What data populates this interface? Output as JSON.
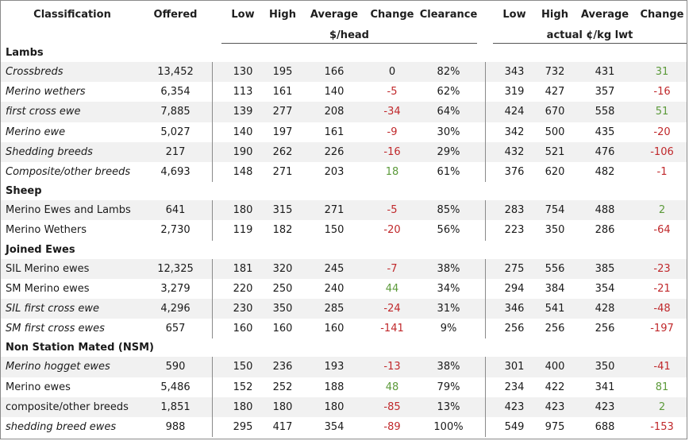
{
  "header": {
    "classification": "Classification",
    "offered": "Offered",
    "low": "Low",
    "high": "High",
    "average": "Average",
    "change": "Change",
    "clearance": "Clearance",
    "low2": "Low",
    "high2": "High",
    "average2": "Average",
    "change2": "Change",
    "unit_head": "$/head",
    "unit_kg": "actual ¢/kg lwt"
  },
  "sections": [
    {
      "title": "Lambs",
      "rows": [
        {
          "name": "Crossbreds",
          "italic": true,
          "offered": "13,452",
          "low": "130",
          "high": "195",
          "avg": "166",
          "change": "0",
          "clearance": "82%",
          "low2": "343",
          "high2": "732",
          "avg2": "431",
          "change2": "31"
        },
        {
          "name": "Merino wethers",
          "italic": true,
          "offered": "6,354",
          "low": "113",
          "high": "161",
          "avg": "140",
          "change": "-5",
          "clearance": "62%",
          "low2": "319",
          "high2": "427",
          "avg2": "357",
          "change2": "-16"
        },
        {
          "name": "first cross ewe",
          "italic": true,
          "offered": "7,885",
          "low": "139",
          "high": "277",
          "avg": "208",
          "change": "-34",
          "clearance": "64%",
          "low2": "424",
          "high2": "670",
          "avg2": "558",
          "change2": "51"
        },
        {
          "name": "Merino ewe",
          "italic": true,
          "offered": "5,027",
          "low": "140",
          "high": "197",
          "avg": "161",
          "change": "-9",
          "clearance": "30%",
          "low2": "342",
          "high2": "500",
          "avg2": "435",
          "change2": "-20"
        },
        {
          "name": "Shedding breeds",
          "italic": true,
          "offered": "217",
          "low": "190",
          "high": "262",
          "avg": "226",
          "change": "-16",
          "clearance": "29%",
          "low2": "432",
          "high2": "521",
          "avg2": "476",
          "change2": "-106"
        },
        {
          "name": "Composite/other breeds",
          "italic": true,
          "offered": "4,693",
          "low": "148",
          "high": "271",
          "avg": "203",
          "change": "18",
          "clearance": "61%",
          "low2": "376",
          "high2": "620",
          "avg2": "482",
          "change2": "-1"
        }
      ]
    },
    {
      "title": "Sheep",
      "rows": [
        {
          "name": "Merino Ewes and Lambs",
          "italic": false,
          "offered": "641",
          "low": "180",
          "high": "315",
          "avg": "271",
          "change": "-5",
          "clearance": "85%",
          "low2": "283",
          "high2": "754",
          "avg2": "488",
          "change2": "2"
        },
        {
          "name": "Merino Wethers",
          "italic": false,
          "offered": "2,730",
          "low": "119",
          "high": "182",
          "avg": "150",
          "change": "-20",
          "clearance": "56%",
          "low2": "223",
          "high2": "350",
          "avg2": "286",
          "change2": "-64"
        }
      ]
    },
    {
      "title": "Joined Ewes",
      "rows": [
        {
          "name": "SIL Merino ewes",
          "italic": false,
          "offered": "12,325",
          "low": "181",
          "high": "320",
          "avg": "245",
          "change": "-7",
          "clearance": "38%",
          "low2": "275",
          "high2": "556",
          "avg2": "385",
          "change2": "-23"
        },
        {
          "name": "SM Merino ewes",
          "italic": false,
          "offered": "3,279",
          "low": "220",
          "high": "250",
          "avg": "240",
          "change": "44",
          "clearance": "34%",
          "low2": "294",
          "high2": "384",
          "avg2": "354",
          "change2": "-21"
        },
        {
          "name": "SIL first cross ewe",
          "italic": true,
          "offered": "4,296",
          "low": "230",
          "high": "350",
          "avg": "285",
          "change": "-24",
          "clearance": "31%",
          "low2": "346",
          "high2": "541",
          "avg2": "428",
          "change2": "-48"
        },
        {
          "name": "SM first cross ewes",
          "italic": true,
          "offered": "657",
          "low": "160",
          "high": "160",
          "avg": "160",
          "change": "-141",
          "clearance": "9%",
          "low2": "256",
          "high2": "256",
          "avg2": "256",
          "change2": "-197"
        }
      ]
    },
    {
      "title": "Non Station Mated (NSM)",
      "rows": [
        {
          "name": "Merino hogget ewes",
          "italic": true,
          "offered": "590",
          "low": "150",
          "high": "236",
          "avg": "193",
          "change": "-13",
          "clearance": "38%",
          "low2": "301",
          "high2": "400",
          "avg2": "350",
          "change2": "-41"
        },
        {
          "name": "Merino ewes",
          "italic": false,
          "offered": "5,486",
          "low": "152",
          "high": "252",
          "avg": "188",
          "change": "48",
          "clearance": "79%",
          "low2": "234",
          "high2": "422",
          "avg2": "341",
          "change2": "81"
        },
        {
          "name": "composite/other breeds",
          "italic": false,
          "offered": "1,851",
          "low": "180",
          "high": "180",
          "avg": "180",
          "change": "-85",
          "clearance": "13%",
          "low2": "423",
          "high2": "423",
          "avg2": "423",
          "change2": "2"
        },
        {
          "name": "shedding breed ewes",
          "italic": true,
          "offered": "988",
          "low": "295",
          "high": "417",
          "avg": "354",
          "change": "-89",
          "clearance": "100%",
          "low2": "549",
          "high2": "975",
          "avg2": "688",
          "change2": "-153"
        }
      ]
    }
  ],
  "colors": {
    "negative": "#c0282b",
    "positive": "#5c9a3a",
    "shade": "#f1f1f1"
  }
}
